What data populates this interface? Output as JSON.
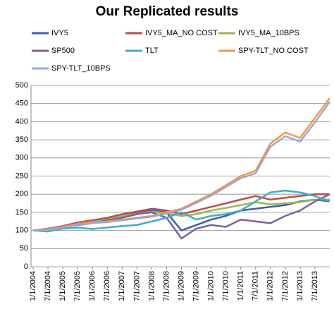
{
  "chart_data": {
    "type": "line",
    "title": "Our Replicated results",
    "categories": [
      "1/1/2004",
      "7/1/2004",
      "1/1/2005",
      "7/1/2005",
      "1/1/2006",
      "7/1/2006",
      "1/1/2007",
      "7/1/2007",
      "1/1/2008",
      "7/1/2008",
      "1/1/2009",
      "7/1/2009",
      "1/1/2010",
      "7/1/2010",
      "1/1/2011",
      "7/1/2011",
      "1/1/2012",
      "7/1/2012",
      "1/1/2013",
      "7/1/2013",
      null
    ],
    "series": [
      {
        "name": "IVY5",
        "color": "#3c5fa6",
        "values": [
          100,
          104,
          110,
          118,
          125,
          132,
          140,
          148,
          155,
          150,
          100,
          115,
          130,
          140,
          155,
          160,
          165,
          170,
          180,
          185,
          180
        ]
      },
      {
        "name": "IVY5_MA_NO COST",
        "color": "#be4b48",
        "values": [
          100,
          105,
          112,
          122,
          128,
          135,
          145,
          152,
          160,
          155,
          145,
          155,
          165,
          175,
          185,
          195,
          185,
          190,
          195,
          200,
          200
        ]
      },
      {
        "name": "IVY5_MA_10BPS",
        "color": "#98b954",
        "values": [
          100,
          104,
          110,
          118,
          124,
          130,
          140,
          146,
          152,
          148,
          140,
          145,
          155,
          162,
          170,
          178,
          172,
          175,
          178,
          185,
          185
        ]
      },
      {
        "name": "SP500",
        "color": "#7d60a0",
        "values": [
          100,
          102,
          110,
          115,
          120,
          128,
          135,
          145,
          150,
          135,
          78,
          105,
          115,
          110,
          130,
          125,
          120,
          140,
          155,
          180,
          200
        ]
      },
      {
        "name": "TLT",
        "color": "#46aac5",
        "values": [
          100,
          97,
          105,
          108,
          104,
          108,
          112,
          115,
          125,
          135,
          150,
          130,
          140,
          145,
          155,
          180,
          205,
          210,
          205,
          195,
          180
        ]
      },
      {
        "name": "SPY-TLT_NO COST",
        "color": "#f79646",
        "values": [
          100,
          102,
          110,
          118,
          122,
          125,
          130,
          135,
          140,
          150,
          160,
          180,
          200,
          225,
          250,
          265,
          340,
          370,
          355,
          410,
          465
        ]
      },
      {
        "name": "SPY-TLT_10BPS",
        "color": "#93a9d9",
        "values": [
          100,
          101,
          108,
          116,
          120,
          123,
          128,
          133,
          138,
          147,
          157,
          176,
          196,
          220,
          244,
          258,
          331,
          360,
          345,
          398,
          455
        ]
      }
    ],
    "ylim": [
      0,
      500
    ],
    "yticks": [
      0,
      50,
      100,
      150,
      200,
      250,
      300,
      350,
      400,
      450,
      500
    ],
    "grid": true
  }
}
